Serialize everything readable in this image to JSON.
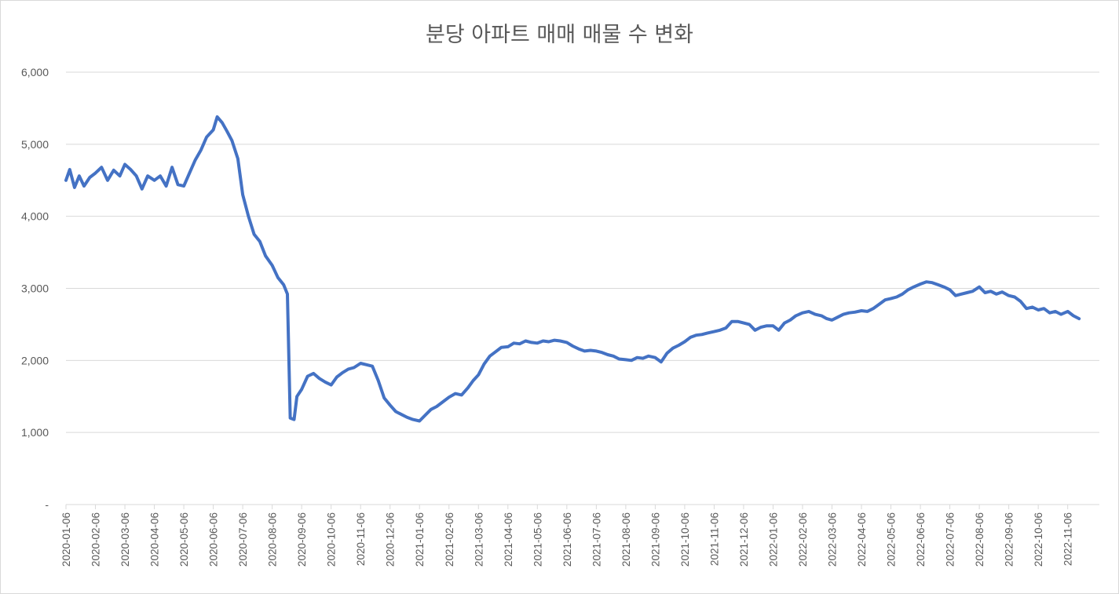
{
  "chart_data": {
    "type": "line",
    "title": "분당 아파트 매매 매물 수 변화",
    "xlabel": "",
    "ylabel": "",
    "ylim": [
      0,
      6000
    ],
    "y_ticks": [
      {
        "value": 0,
        "label": "-"
      },
      {
        "value": 1000,
        "label": "1,000"
      },
      {
        "value": 2000,
        "label": "2,000"
      },
      {
        "value": 3000,
        "label": "3,000"
      },
      {
        "value": 4000,
        "label": "4,000"
      },
      {
        "value": 5000,
        "label": "5,000"
      },
      {
        "value": 6000,
        "label": "6,000"
      }
    ],
    "grid": true,
    "legend": "none",
    "line_color": "#4472c4",
    "x_tick_labels": [
      "2020-01-06",
      "2020-02-06",
      "2020-03-06",
      "2020-04-06",
      "2020-05-06",
      "2020-06-06",
      "2020-07-06",
      "2020-08-06",
      "2020-09-06",
      "2020-10-06",
      "2020-11-06",
      "2020-12-06",
      "2021-01-06",
      "2021-02-06",
      "2021-03-06",
      "2021-04-06",
      "2021-05-06",
      "2021-06-06",
      "2021-07-06",
      "2021-08-06",
      "2021-09-06",
      "2021-10-06",
      "2021-11-06",
      "2021-12-06",
      "2022-01-06",
      "2022-02-06",
      "2022-03-06",
      "2022-04-06",
      "2022-05-06",
      "2022-06-06",
      "2022-07-06",
      "2022-08-06",
      "2022-09-06",
      "2022-10-06",
      "2022-11-06"
    ],
    "series": [
      {
        "points": [
          [
            "2020-01-06",
            4500
          ],
          [
            "2020-01-10",
            4650
          ],
          [
            "2020-01-15",
            4400
          ],
          [
            "2020-01-20",
            4560
          ],
          [
            "2020-01-25",
            4420
          ],
          [
            "2020-01-31",
            4540
          ],
          [
            "2020-02-06",
            4600
          ],
          [
            "2020-02-12",
            4680
          ],
          [
            "2020-02-18",
            4500
          ],
          [
            "2020-02-24",
            4640
          ],
          [
            "2020-03-01",
            4560
          ],
          [
            "2020-03-06",
            4720
          ],
          [
            "2020-03-12",
            4650
          ],
          [
            "2020-03-18",
            4560
          ],
          [
            "2020-03-24",
            4380
          ],
          [
            "2020-03-30",
            4560
          ],
          [
            "2020-04-06",
            4500
          ],
          [
            "2020-04-12",
            4560
          ],
          [
            "2020-04-18",
            4420
          ],
          [
            "2020-04-24",
            4680
          ],
          [
            "2020-04-30",
            4440
          ],
          [
            "2020-05-06",
            4420
          ],
          [
            "2020-05-12",
            4600
          ],
          [
            "2020-05-18",
            4780
          ],
          [
            "2020-05-24",
            4920
          ],
          [
            "2020-05-30",
            5100
          ],
          [
            "2020-06-06",
            5200
          ],
          [
            "2020-06-10",
            5380
          ],
          [
            "2020-06-15",
            5300
          ],
          [
            "2020-06-20",
            5180
          ],
          [
            "2020-06-25",
            5050
          ],
          [
            "2020-07-01",
            4800
          ],
          [
            "2020-07-06",
            4300
          ],
          [
            "2020-07-12",
            4000
          ],
          [
            "2020-07-18",
            3750
          ],
          [
            "2020-07-24",
            3650
          ],
          [
            "2020-07-30",
            3450
          ],
          [
            "2020-08-06",
            3320
          ],
          [
            "2020-08-12",
            3150
          ],
          [
            "2020-08-18",
            3050
          ],
          [
            "2020-08-22",
            2920
          ],
          [
            "2020-08-25",
            1200
          ],
          [
            "2020-08-29",
            1180
          ],
          [
            "2020-09-01",
            1500
          ],
          [
            "2020-09-06",
            1600
          ],
          [
            "2020-09-12",
            1780
          ],
          [
            "2020-09-18",
            1820
          ],
          [
            "2020-09-24",
            1750
          ],
          [
            "2020-09-30",
            1700
          ],
          [
            "2020-10-06",
            1660
          ],
          [
            "2020-10-12",
            1770
          ],
          [
            "2020-10-18",
            1830
          ],
          [
            "2020-10-24",
            1880
          ],
          [
            "2020-10-30",
            1900
          ],
          [
            "2020-11-06",
            1960
          ],
          [
            "2020-11-12",
            1940
          ],
          [
            "2020-11-18",
            1920
          ],
          [
            "2020-11-24",
            1720
          ],
          [
            "2020-11-30",
            1480
          ],
          [
            "2020-12-06",
            1380
          ],
          [
            "2020-12-12",
            1290
          ],
          [
            "2020-12-18",
            1250
          ],
          [
            "2020-12-24",
            1210
          ],
          [
            "2020-12-30",
            1180
          ],
          [
            "2021-01-06",
            1160
          ],
          [
            "2021-01-12",
            1240
          ],
          [
            "2021-01-18",
            1320
          ],
          [
            "2021-01-24",
            1360
          ],
          [
            "2021-01-30",
            1420
          ],
          [
            "2021-02-06",
            1490
          ],
          [
            "2021-02-12",
            1540
          ],
          [
            "2021-02-18",
            1520
          ],
          [
            "2021-02-24",
            1620
          ],
          [
            "2021-03-01",
            1720
          ],
          [
            "2021-03-06",
            1800
          ],
          [
            "2021-03-12",
            1950
          ],
          [
            "2021-03-18",
            2060
          ],
          [
            "2021-03-24",
            2120
          ],
          [
            "2021-03-30",
            2180
          ],
          [
            "2021-04-06",
            2190
          ],
          [
            "2021-04-12",
            2240
          ],
          [
            "2021-04-18",
            2230
          ],
          [
            "2021-04-24",
            2270
          ],
          [
            "2021-04-30",
            2250
          ],
          [
            "2021-05-06",
            2240
          ],
          [
            "2021-05-12",
            2270
          ],
          [
            "2021-05-18",
            2260
          ],
          [
            "2021-05-24",
            2280
          ],
          [
            "2021-05-30",
            2270
          ],
          [
            "2021-06-06",
            2250
          ],
          [
            "2021-06-12",
            2200
          ],
          [
            "2021-06-18",
            2160
          ],
          [
            "2021-06-24",
            2130
          ],
          [
            "2021-06-30",
            2140
          ],
          [
            "2021-07-06",
            2130
          ],
          [
            "2021-07-12",
            2110
          ],
          [
            "2021-07-18",
            2080
          ],
          [
            "2021-07-24",
            2060
          ],
          [
            "2021-07-30",
            2020
          ],
          [
            "2021-08-06",
            2010
          ],
          [
            "2021-08-12",
            2000
          ],
          [
            "2021-08-18",
            2040
          ],
          [
            "2021-08-24",
            2030
          ],
          [
            "2021-08-30",
            2060
          ],
          [
            "2021-09-06",
            2040
          ],
          [
            "2021-09-12",
            1980
          ],
          [
            "2021-09-18",
            2100
          ],
          [
            "2021-09-24",
            2170
          ],
          [
            "2021-09-30",
            2210
          ],
          [
            "2021-10-06",
            2260
          ],
          [
            "2021-10-12",
            2320
          ],
          [
            "2021-10-18",
            2350
          ],
          [
            "2021-10-24",
            2360
          ],
          [
            "2021-10-30",
            2380
          ],
          [
            "2021-11-06",
            2400
          ],
          [
            "2021-11-12",
            2420
          ],
          [
            "2021-11-18",
            2450
          ],
          [
            "2021-11-24",
            2540
          ],
          [
            "2021-11-30",
            2540
          ],
          [
            "2021-12-06",
            2520
          ],
          [
            "2021-12-12",
            2500
          ],
          [
            "2021-12-18",
            2420
          ],
          [
            "2021-12-24",
            2460
          ],
          [
            "2021-12-30",
            2480
          ],
          [
            "2022-01-06",
            2480
          ],
          [
            "2022-01-12",
            2420
          ],
          [
            "2022-01-18",
            2520
          ],
          [
            "2022-01-24",
            2560
          ],
          [
            "2022-01-30",
            2620
          ],
          [
            "2022-02-06",
            2660
          ],
          [
            "2022-02-12",
            2680
          ],
          [
            "2022-02-18",
            2640
          ],
          [
            "2022-02-24",
            2620
          ],
          [
            "2022-03-01",
            2580
          ],
          [
            "2022-03-06",
            2560
          ],
          [
            "2022-03-12",
            2600
          ],
          [
            "2022-03-18",
            2640
          ],
          [
            "2022-03-24",
            2660
          ],
          [
            "2022-03-30",
            2670
          ],
          [
            "2022-04-06",
            2690
          ],
          [
            "2022-04-12",
            2680
          ],
          [
            "2022-04-18",
            2720
          ],
          [
            "2022-04-24",
            2780
          ],
          [
            "2022-04-30",
            2840
          ],
          [
            "2022-05-06",
            2860
          ],
          [
            "2022-05-12",
            2880
          ],
          [
            "2022-05-18",
            2920
          ],
          [
            "2022-05-24",
            2980
          ],
          [
            "2022-05-30",
            3020
          ],
          [
            "2022-06-06",
            3060
          ],
          [
            "2022-06-12",
            3090
          ],
          [
            "2022-06-18",
            3080
          ],
          [
            "2022-06-24",
            3050
          ],
          [
            "2022-06-30",
            3020
          ],
          [
            "2022-07-06",
            2980
          ],
          [
            "2022-07-12",
            2900
          ],
          [
            "2022-07-18",
            2920
          ],
          [
            "2022-07-24",
            2940
          ],
          [
            "2022-07-30",
            2960
          ],
          [
            "2022-08-06",
            3020
          ],
          [
            "2022-08-12",
            2940
          ],
          [
            "2022-08-18",
            2960
          ],
          [
            "2022-08-24",
            2920
          ],
          [
            "2022-08-30",
            2950
          ],
          [
            "2022-09-06",
            2900
          ],
          [
            "2022-09-12",
            2880
          ],
          [
            "2022-09-18",
            2820
          ],
          [
            "2022-09-24",
            2720
          ],
          [
            "2022-09-30",
            2740
          ],
          [
            "2022-10-06",
            2700
          ],
          [
            "2022-10-12",
            2720
          ],
          [
            "2022-10-18",
            2660
          ],
          [
            "2022-10-24",
            2680
          ],
          [
            "2022-10-30",
            2640
          ],
          [
            "2022-11-06",
            2680
          ],
          [
            "2022-11-12",
            2620
          ],
          [
            "2022-11-18",
            2580
          ]
        ]
      }
    ]
  }
}
